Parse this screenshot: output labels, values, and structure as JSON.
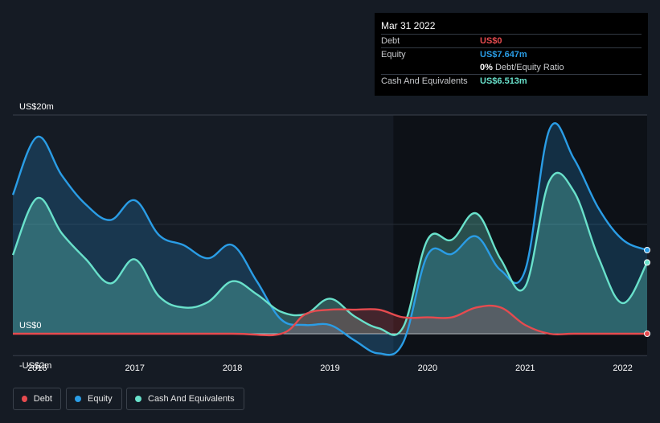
{
  "tooltip": {
    "date": "Mar 31 2022",
    "rows": [
      {
        "label": "Debt",
        "value": "US$0",
        "color": "#e64b4f"
      },
      {
        "label": "Equity",
        "value": "US$7.647m",
        "color": "#2a9de6"
      },
      {
        "label": "",
        "value": "0%",
        "suffix": "Debt/Equity Ratio",
        "color": "#ffffff"
      },
      {
        "label": "Cash And Equivalents",
        "value": "US$6.513m",
        "color": "#69e1cb"
      }
    ]
  },
  "legend": [
    {
      "label": "Debt",
      "color": "#e64b4f"
    },
    {
      "label": "Equity",
      "color": "#2a9de6"
    },
    {
      "label": "Cash And Equivalents",
      "color": "#69e1cb"
    }
  ],
  "chart_data": {
    "type": "area",
    "y_tick_labels": [
      "US$20m",
      "US$0",
      "-US$2m"
    ],
    "x_tick_labels": [
      "2016",
      "2017",
      "2018",
      "2019",
      "2020",
      "2021",
      "2022"
    ],
    "ylim": [
      -2,
      20
    ],
    "xlim": [
      2015.75,
      2022.25
    ],
    "series": [
      {
        "name": "Debt",
        "color": "#e64b4f",
        "points": [
          [
            2015.75,
            0
          ],
          [
            2016.0,
            0
          ],
          [
            2017.0,
            0
          ],
          [
            2018.0,
            0
          ],
          [
            2018.5,
            0
          ],
          [
            2018.75,
            1.8
          ],
          [
            2019.0,
            2.2
          ],
          [
            2019.25,
            2.2
          ],
          [
            2019.5,
            2.2
          ],
          [
            2019.75,
            1.5
          ],
          [
            2020.0,
            1.5
          ],
          [
            2020.25,
            1.5
          ],
          [
            2020.5,
            2.4
          ],
          [
            2020.75,
            2.4
          ],
          [
            2021.0,
            0.8
          ],
          [
            2021.25,
            0
          ],
          [
            2021.5,
            0
          ],
          [
            2022.0,
            0
          ],
          [
            2022.25,
            0
          ]
        ]
      },
      {
        "name": "Equity",
        "color": "#2a9de6",
        "points": [
          [
            2015.75,
            12.7
          ],
          [
            2016.0,
            18.0
          ],
          [
            2016.25,
            14.5
          ],
          [
            2016.5,
            11.8
          ],
          [
            2016.75,
            10.4
          ],
          [
            2017.0,
            12.2
          ],
          [
            2017.25,
            9.0
          ],
          [
            2017.5,
            8.1
          ],
          [
            2017.75,
            6.9
          ],
          [
            2018.0,
            8.1
          ],
          [
            2018.25,
            4.8
          ],
          [
            2018.5,
            1.3
          ],
          [
            2018.75,
            0.8
          ],
          [
            2019.0,
            0.8
          ],
          [
            2019.25,
            -0.6
          ],
          [
            2019.5,
            -1.8
          ],
          [
            2019.75,
            -0.8
          ],
          [
            2020.0,
            7.2
          ],
          [
            2020.25,
            7.3
          ],
          [
            2020.5,
            8.9
          ],
          [
            2020.75,
            5.8
          ],
          [
            2021.0,
            5.8
          ],
          [
            2021.25,
            18.7
          ],
          [
            2021.5,
            16.0
          ],
          [
            2021.75,
            11.5
          ],
          [
            2022.0,
            8.6
          ],
          [
            2022.25,
            7.647
          ]
        ]
      },
      {
        "name": "Cash And Equivalents",
        "color": "#69e1cb",
        "points": [
          [
            2015.75,
            7.2
          ],
          [
            2016.0,
            12.4
          ],
          [
            2016.25,
            9.2
          ],
          [
            2016.5,
            6.8
          ],
          [
            2016.75,
            4.6
          ],
          [
            2017.0,
            6.8
          ],
          [
            2017.25,
            3.4
          ],
          [
            2017.5,
            2.4
          ],
          [
            2017.75,
            2.9
          ],
          [
            2018.0,
            4.8
          ],
          [
            2018.25,
            3.6
          ],
          [
            2018.5,
            2.0
          ],
          [
            2018.75,
            1.8
          ],
          [
            2019.0,
            3.2
          ],
          [
            2019.25,
            1.6
          ],
          [
            2019.5,
            0.5
          ],
          [
            2019.75,
            0.6
          ],
          [
            2020.0,
            8.6
          ],
          [
            2020.25,
            8.6
          ],
          [
            2020.5,
            11.0
          ],
          [
            2020.75,
            6.8
          ],
          [
            2021.0,
            4.3
          ],
          [
            2021.25,
            14.0
          ],
          [
            2021.5,
            13.0
          ],
          [
            2021.75,
            7.0
          ],
          [
            2022.0,
            2.8
          ],
          [
            2022.25,
            6.513
          ]
        ]
      }
    ]
  }
}
